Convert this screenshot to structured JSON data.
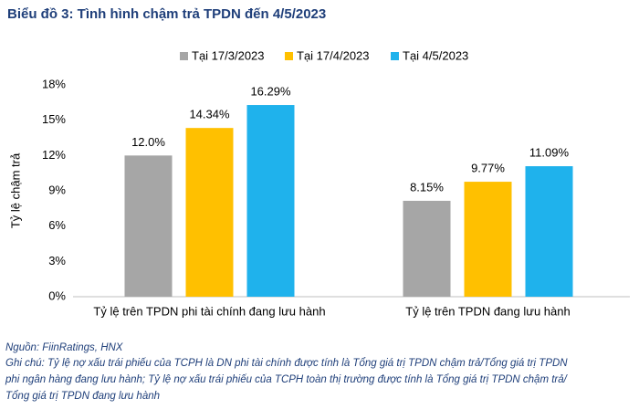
{
  "chart_data": {
    "type": "bar",
    "title": "Biểu đồ 3: Tình hình chậm trả TPDN đến 4/5/2023",
    "y_label": "Tỷ lệ chậm trả",
    "categories": [
      "Tỷ lệ trên TPDN phi tài chính đang lưu hành",
      "Tỷ lệ trên TPDN đang lưu hành"
    ],
    "series": [
      {
        "name": "Tại 17/3/2023",
        "color": "#a6a6a6",
        "values": [
          12.0,
          8.15
        ],
        "value_labels": [
          "12.0%",
          "8.15%"
        ]
      },
      {
        "name": "Tại 17/4/2023",
        "color": "#ffc000",
        "values": [
          14.34,
          9.77
        ],
        "value_labels": [
          "14.34%",
          "9.77%"
        ]
      },
      {
        "name": "Tại 4/5/2023",
        "color": "#1fb2ec",
        "values": [
          16.29,
          11.09
        ],
        "value_labels": [
          "16.29%",
          "11.09%"
        ]
      }
    ],
    "ylim": [
      0,
      18
    ],
    "yticks": [
      {
        "value": 0,
        "label": "0%"
      },
      {
        "value": 3,
        "label": "3%"
      },
      {
        "value": 6,
        "label": "6%"
      },
      {
        "value": 9,
        "label": "9%"
      },
      {
        "value": 12,
        "label": "12%"
      },
      {
        "value": 15,
        "label": "15%"
      },
      {
        "value": 18,
        "label": "18%"
      }
    ],
    "grid": false,
    "legend": "top",
    "source": "Nguồn: FiinRatings, HNX",
    "notes": [
      "Ghi chú: Tỷ lệ nợ xấu trái phiếu của TCPH là DN phi tài chính được tính là Tổng giá trị TPDN chậm trả/Tổng giá trị TPDN",
      "phi ngân hàng đang lưu hành; Tỷ lệ nợ xấu trái phiếu của TCPH toàn thị trường được tính là Tổng giá trị TPDN chậm trả/",
      "Tổng giá trị TPDN đang lưu hành"
    ]
  }
}
